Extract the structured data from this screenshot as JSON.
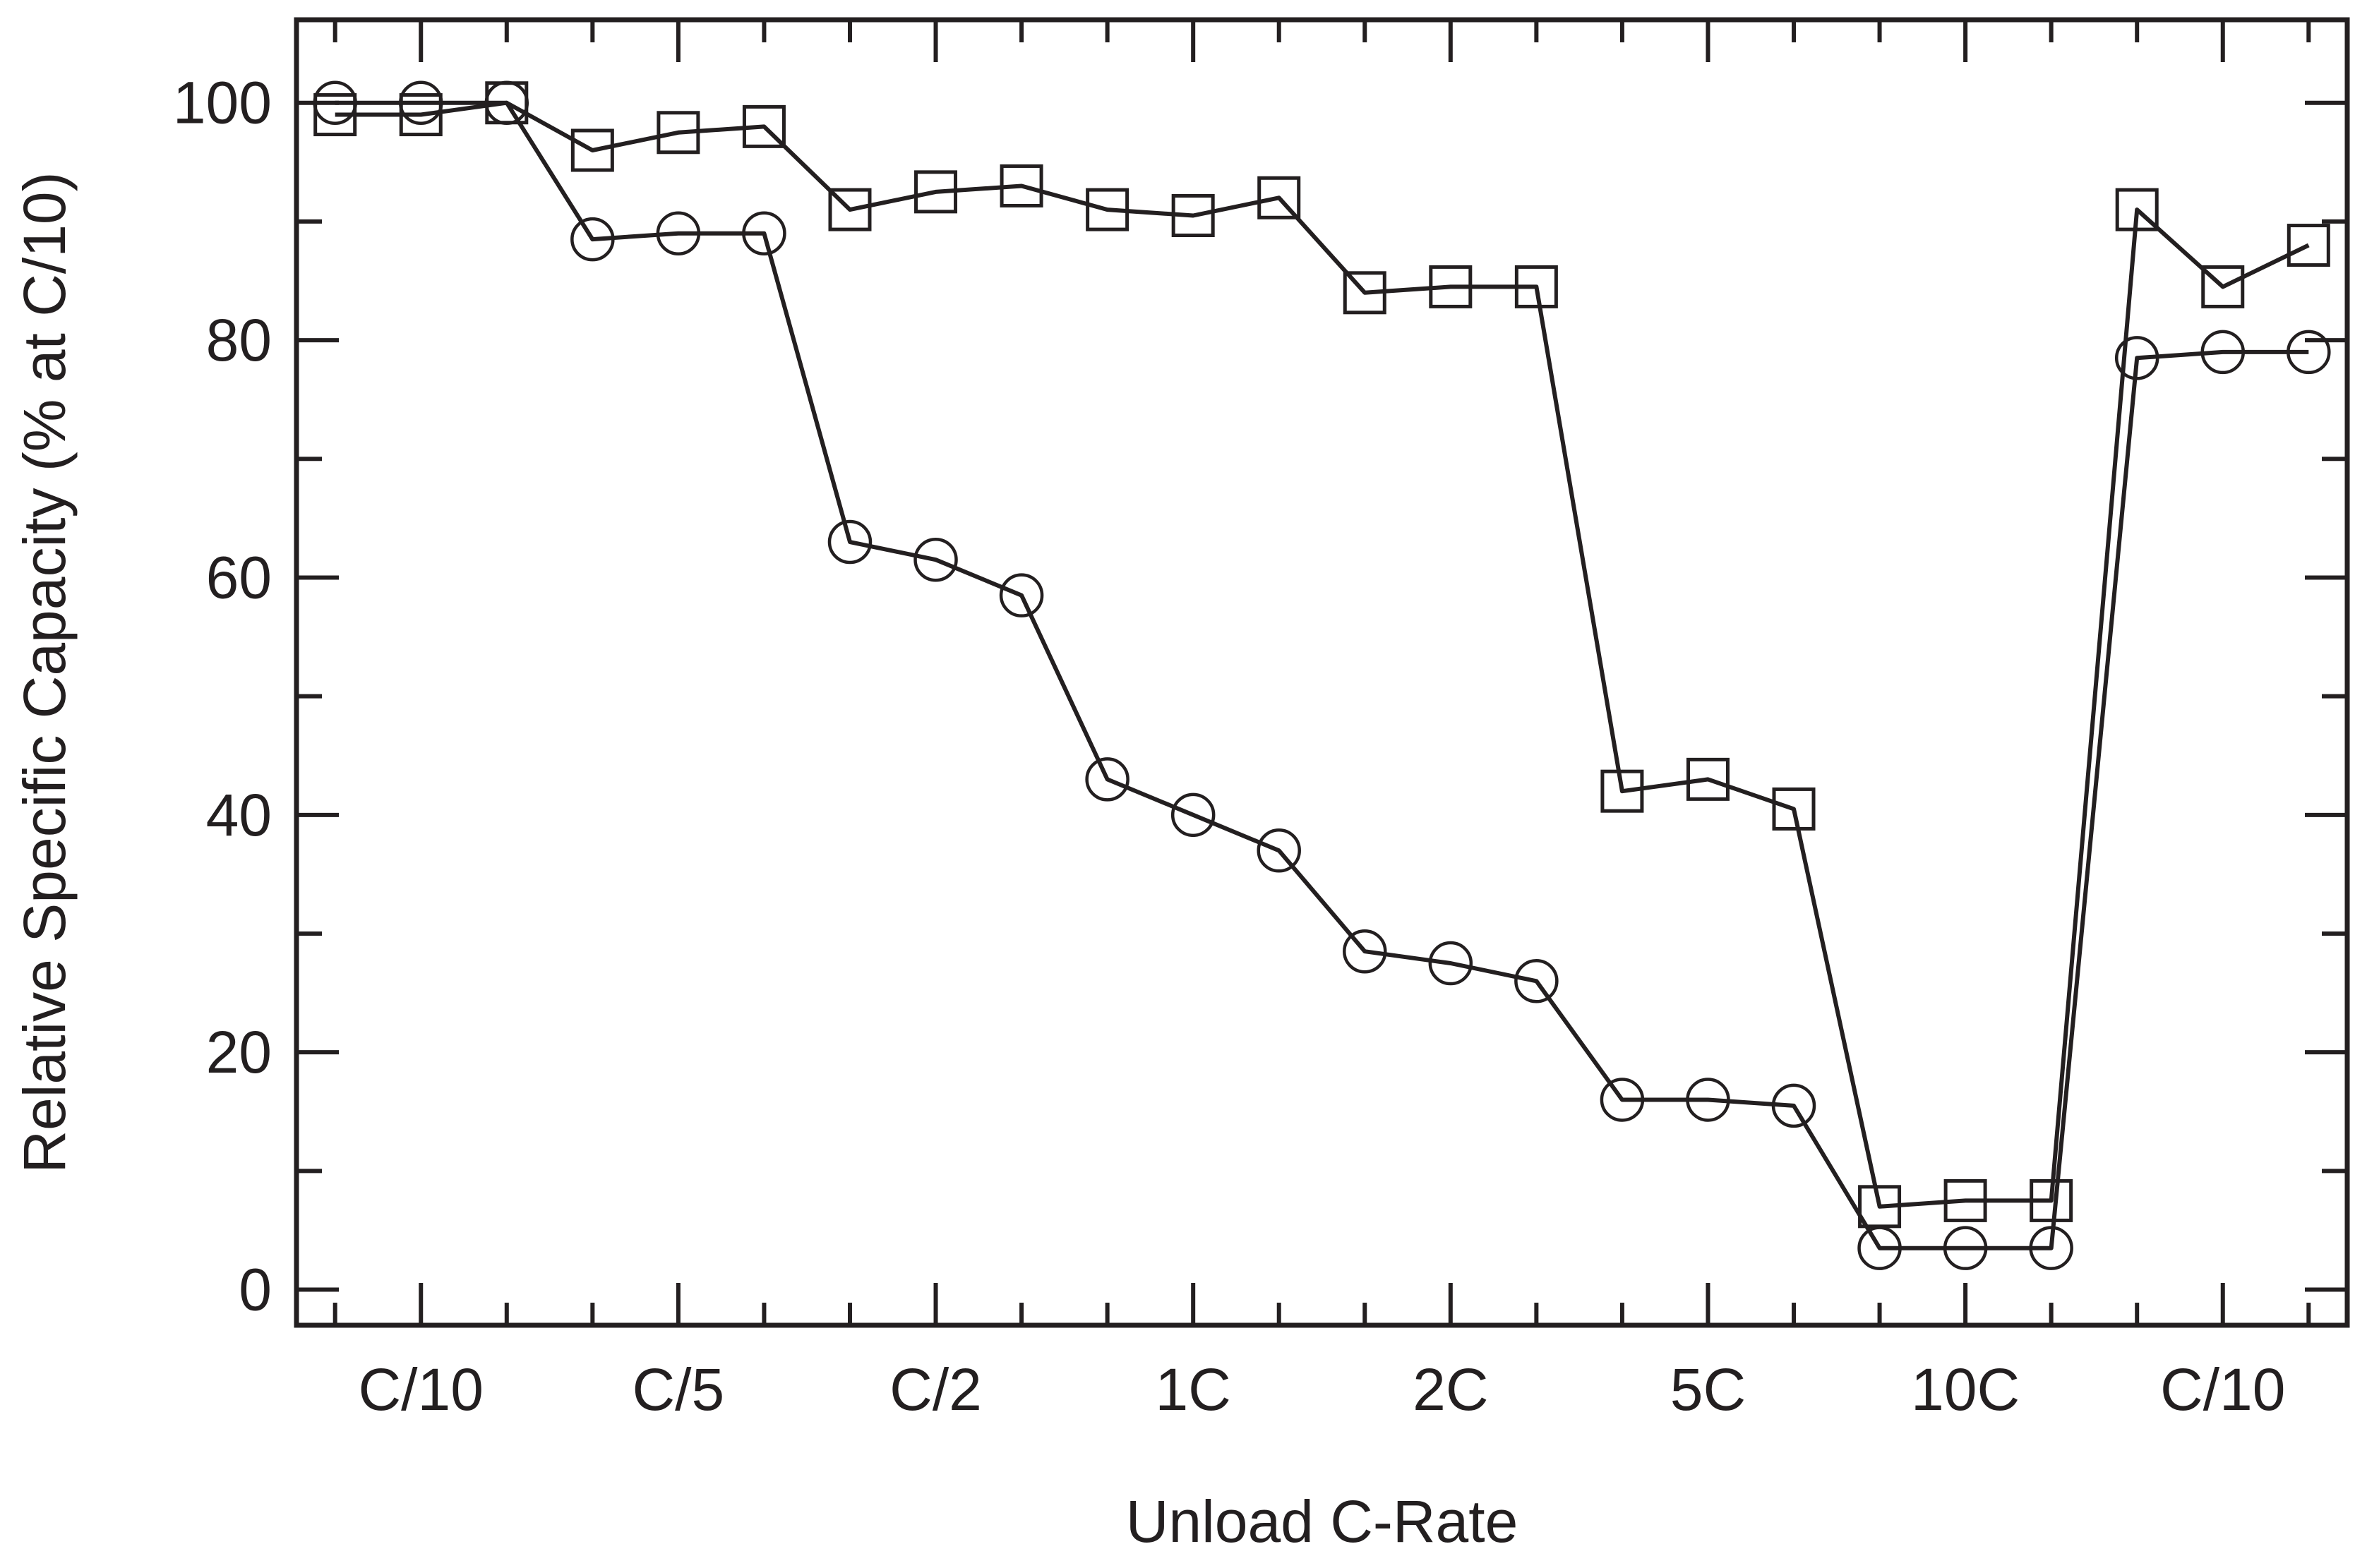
{
  "chart_data": {
    "type": "line",
    "title": "",
    "xlabel": "Unload C-Rate",
    "ylabel": "Relative Specific Capacity (% at C/10)",
    "ylim": [
      -3,
      107
    ],
    "yticks": [
      0,
      20,
      40,
      60,
      80,
      100
    ],
    "grid": false,
    "legend": "none",
    "categories": [
      "C/10",
      "C/5",
      "C/2",
      "1C",
      "2C",
      "5C",
      "10C",
      "C/10"
    ],
    "x": [
      1,
      2,
      3,
      4,
      5,
      6,
      7,
      8,
      9,
      10,
      11,
      12,
      13,
      14,
      15,
      16,
      17,
      18,
      19,
      20,
      21,
      22,
      23,
      24
    ],
    "series": [
      {
        "marker": "square",
        "values": [
          99,
          99,
          100,
          96,
          97.5,
          98,
          91,
          92.5,
          93,
          91,
          90.5,
          92,
          84,
          84.5,
          84.5,
          42,
          43,
          40.5,
          7,
          7.5,
          7.5,
          91,
          84.5,
          88
        ]
      },
      {
        "marker": "circle",
        "values": [
          100,
          100,
          100,
          88.5,
          89,
          89,
          63,
          61.5,
          58.5,
          43,
          40,
          37,
          28.5,
          27.5,
          26,
          16,
          16,
          15.5,
          3.5,
          3.5,
          3.5,
          78.5,
          79,
          79
        ]
      }
    ],
    "colors": {
      "line": "#231f20",
      "frame": "#231f20"
    }
  }
}
